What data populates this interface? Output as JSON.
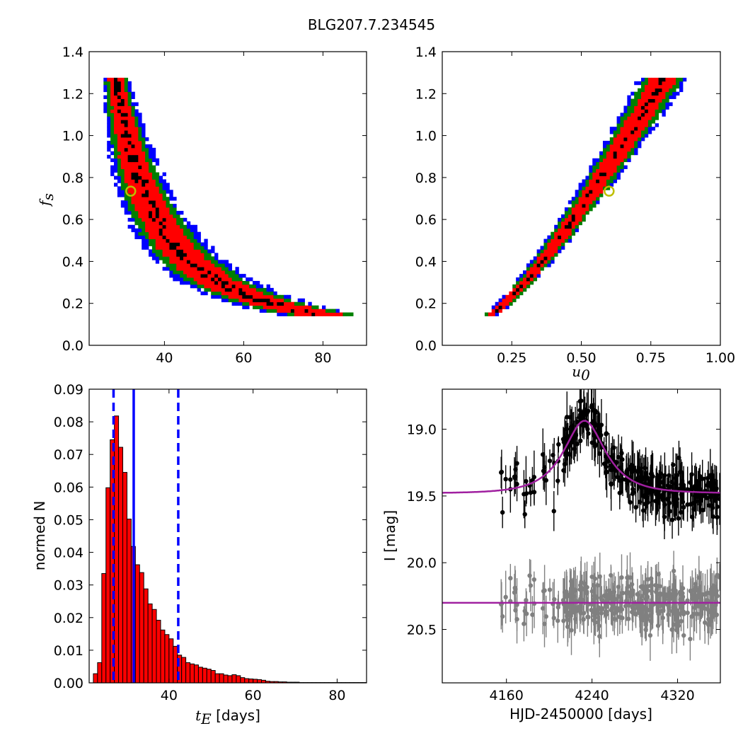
{
  "figure": {
    "title": "BLG207.7.234545"
  },
  "chart_data": [
    {
      "id": "top-left",
      "type": "heatmap",
      "title": "",
      "xlabel": "",
      "ylabel": "f_s",
      "ylabel_main": "f",
      "ylabel_sub": "s",
      "xlim": [
        21,
        91
      ],
      "ylim": [
        0,
        1.4
      ],
      "xticks": [
        40,
        60,
        80
      ],
      "yticks": [
        0.0,
        0.2,
        0.4,
        0.6,
        0.8,
        1.0,
        1.2,
        1.4
      ],
      "ytick_labels": [
        "0.0",
        "0.2",
        "0.4",
        "0.6",
        "0.8",
        "1.0",
        "1.2",
        "1.4"
      ],
      "confidence_colors": [
        "#000000",
        "#ff0000",
        "#008000",
        "#0000ff"
      ],
      "best_fit": {
        "x": 31.5,
        "y": 0.735
      },
      "marker_color": "#bfbf00"
    },
    {
      "id": "top-right",
      "type": "heatmap",
      "title": "",
      "xlabel": "u_0",
      "xlabel_main": "u",
      "xlabel_sub": "0",
      "ylabel": "",
      "xlim": [
        0.0,
        1.0
      ],
      "ylim": [
        0,
        1.4
      ],
      "xticks": [
        0.25,
        0.5,
        0.75,
        1.0
      ],
      "xtick_labels": [
        "0.25",
        "0.50",
        "0.75",
        "1.00"
      ],
      "yticks": [
        0.0,
        0.2,
        0.4,
        0.6,
        0.8,
        1.0,
        1.2,
        1.4
      ],
      "ytick_labels": [
        "0.0",
        "0.2",
        "0.4",
        "0.6",
        "0.8",
        "1.0",
        "1.2",
        "1.4"
      ],
      "confidence_colors": [
        "#000000",
        "#ff0000",
        "#008000",
        "#0000ff"
      ],
      "best_fit": {
        "x": 0.6,
        "y": 0.735
      },
      "marker_color": "#bfbf00"
    },
    {
      "id": "bottom-left",
      "type": "bar",
      "title": "",
      "xlabel": "t_E [days]",
      "xlabel_main": "t",
      "xlabel_sub": "E",
      "xlabel_rest": " [days]",
      "ylabel": "normed N",
      "xlim": [
        21,
        87
      ],
      "ylim": [
        0,
        0.09
      ],
      "xticks": [
        40,
        60,
        80
      ],
      "yticks": [
        0.0,
        0.01,
        0.02,
        0.03,
        0.04,
        0.05,
        0.06,
        0.07,
        0.08,
        0.09
      ],
      "ytick_labels": [
        "0.00",
        "0.01",
        "0.02",
        "0.03",
        "0.04",
        "0.05",
        "0.06",
        "0.07",
        "0.08",
        "0.09"
      ],
      "bar_color": "#ff0000",
      "bin_start": 22.0,
      "bin_width": 1.0,
      "values": [
        0.0028,
        0.0062,
        0.0335,
        0.0598,
        0.0745,
        0.0818,
        0.0722,
        0.0645,
        0.0502,
        0.0418,
        0.0362,
        0.0338,
        0.0288,
        0.0242,
        0.0225,
        0.0192,
        0.0162,
        0.0148,
        0.0135,
        0.0112,
        0.0085,
        0.0078,
        0.0062,
        0.0058,
        0.0055,
        0.0048,
        0.0045,
        0.0042,
        0.0038,
        0.0028,
        0.0028,
        0.0024,
        0.0022,
        0.0025,
        0.0022,
        0.0016,
        0.0013,
        0.0012,
        0.0011,
        0.001,
        0.0008,
        0.0005,
        0.0004,
        0.0004,
        0.0003,
        0.0003,
        0.0002,
        0.0002,
        0.0002,
        0.0001,
        0.0001,
        0.0001,
        0.0001,
        0.0001,
        0.0001,
        0.0001,
        0.0001,
        0.0001,
        0.0001,
        0.0001,
        0.0001,
        0.0001,
        0.0001,
        0.0001,
        0.0001
      ],
      "vlines": [
        {
          "x": 31.6,
          "style": "solid",
          "color": "#0000ff"
        },
        {
          "x": 26.8,
          "style": "dashed",
          "color": "#0000ff"
        },
        {
          "x": 42.2,
          "style": "dashed",
          "color": "#0000ff"
        }
      ]
    },
    {
      "id": "bottom-right",
      "type": "scatter",
      "title": "",
      "xlabel": "HJD-2450000 [days]",
      "ylabel": "I [mag]",
      "xlim": [
        4100,
        4360
      ],
      "ylim": [
        20.9,
        18.7
      ],
      "y_inverted": true,
      "xticks": [
        4160,
        4240,
        4320
      ],
      "yticks": [
        19.0,
        19.5,
        20.0,
        20.5
      ],
      "ytick_labels": [
        "19.0",
        "19.5",
        "20.0",
        "20.5"
      ],
      "data_colors": [
        "#000000",
        "#808080"
      ],
      "model_color": "#a020a0",
      "model": {
        "t0": 4233,
        "tE": 31.6,
        "u0": 0.6,
        "fs": 0.735,
        "baseline": 19.48
      },
      "residual_level": 20.3,
      "observation_range": [
        4155,
        4360
      ]
    }
  ]
}
